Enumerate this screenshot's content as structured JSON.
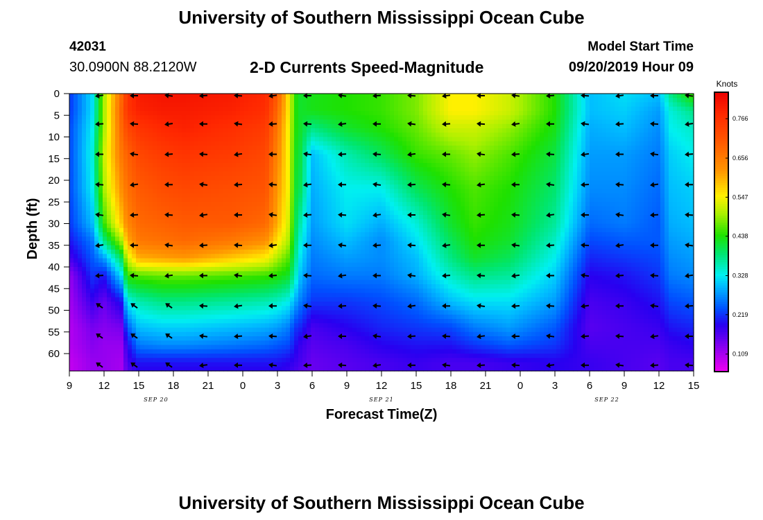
{
  "header": {
    "title": "University of Southern Mississippi Ocean Cube",
    "station_id": "42031",
    "station_location": "30.0900N 88.2120W",
    "subtitle": "2-D Currents Speed-Magnitude",
    "model_start_label": "Model Start Time",
    "model_start_time": "09/20/2019 Hour 09"
  },
  "footer": {
    "title": "University of Southern Mississippi Ocean Cube"
  },
  "chart_data": {
    "type": "heatmap",
    "title": "2-D Currents Speed-Magnitude",
    "xlabel": "Forecast Time(Z)",
    "ylabel": "Depth (ft)",
    "x_tick_labels": [
      "9",
      "12",
      "15",
      "18",
      "21",
      "0",
      "3",
      "6",
      "9",
      "12",
      "15",
      "18",
      "21",
      "0",
      "3",
      "6",
      "9",
      "12",
      "15"
    ],
    "x_hours": [
      0,
      3,
      6,
      9,
      12,
      15,
      18,
      21,
      24,
      27,
      30,
      33,
      36,
      39,
      42,
      45,
      48,
      51,
      54
    ],
    "date_labels": [
      {
        "label": "SEP 20",
        "hour": 7.5
      },
      {
        "label": "SEP 21",
        "hour": 27
      },
      {
        "label": "SEP 22",
        "hour": 46.5
      }
    ],
    "y_ticks": [
      0,
      5,
      10,
      15,
      20,
      25,
      30,
      35,
      40,
      45,
      50,
      55,
      60
    ],
    "ylim": [
      0,
      64
    ],
    "colorbar": {
      "unit": "Knots",
      "ticks": [
        0.766,
        0.656,
        0.547,
        0.438,
        0.328,
        0.219,
        0.109
      ],
      "range": [
        0.06,
        0.84
      ]
    },
    "grid_times": [
      0,
      2,
      3,
      4.5,
      5,
      6,
      8,
      10,
      14,
      17,
      18,
      19,
      19.5,
      20,
      21,
      24,
      27,
      30,
      33,
      35,
      38,
      42,
      45,
      48,
      51,
      52,
      54
    ],
    "grid_depths": [
      0,
      4,
      8,
      14,
      22,
      30,
      34,
      38,
      42,
      48,
      54,
      58,
      62,
      64
    ],
    "speed_knots": [
      [
        0.22,
        0.22,
        0.23,
        0.23,
        0.23,
        0.22,
        0.2,
        0.17,
        0.12,
        0.11,
        0.1,
        0.1,
        0.09,
        0.09
      ],
      [
        0.32,
        0.32,
        0.33,
        0.34,
        0.33,
        0.3,
        0.26,
        0.24,
        0.22,
        0.18,
        0.14,
        0.13,
        0.12,
        0.12
      ],
      [
        0.5,
        0.5,
        0.5,
        0.52,
        0.5,
        0.45,
        0.38,
        0.28,
        0.2,
        0.15,
        0.13,
        0.12,
        0.12,
        0.12
      ],
      [
        0.68,
        0.69,
        0.68,
        0.66,
        0.63,
        0.58,
        0.5,
        0.4,
        0.32,
        0.2,
        0.14,
        0.12,
        0.11,
        0.11
      ],
      [
        0.76,
        0.76,
        0.73,
        0.69,
        0.67,
        0.64,
        0.6,
        0.52,
        0.45,
        0.33,
        0.24,
        0.19,
        0.17,
        0.16
      ],
      [
        0.8,
        0.79,
        0.76,
        0.73,
        0.7,
        0.68,
        0.66,
        0.6,
        0.46,
        0.36,
        0.3,
        0.26,
        0.2,
        0.19
      ],
      [
        0.81,
        0.8,
        0.78,
        0.75,
        0.72,
        0.69,
        0.67,
        0.61,
        0.47,
        0.38,
        0.31,
        0.27,
        0.2,
        0.19
      ],
      [
        0.81,
        0.8,
        0.79,
        0.76,
        0.73,
        0.7,
        0.68,
        0.62,
        0.47,
        0.38,
        0.31,
        0.27,
        0.2,
        0.19
      ],
      [
        0.8,
        0.79,
        0.77,
        0.75,
        0.72,
        0.7,
        0.66,
        0.58,
        0.46,
        0.37,
        0.3,
        0.26,
        0.2,
        0.19
      ],
      [
        0.78,
        0.77,
        0.75,
        0.73,
        0.71,
        0.68,
        0.63,
        0.55,
        0.45,
        0.36,
        0.29,
        0.25,
        0.2,
        0.19
      ],
      [
        0.7,
        0.68,
        0.66,
        0.64,
        0.62,
        0.6,
        0.56,
        0.5,
        0.44,
        0.35,
        0.28,
        0.24,
        0.2,
        0.19
      ],
      [
        0.55,
        0.55,
        0.54,
        0.54,
        0.54,
        0.52,
        0.5,
        0.46,
        0.42,
        0.33,
        0.26,
        0.23,
        0.19,
        0.18
      ],
      [
        0.44,
        0.44,
        0.44,
        0.43,
        0.42,
        0.41,
        0.4,
        0.38,
        0.36,
        0.29,
        0.22,
        0.2,
        0.18,
        0.17
      ],
      [
        0.42,
        0.42,
        0.42,
        0.41,
        0.4,
        0.36,
        0.34,
        0.32,
        0.3,
        0.26,
        0.21,
        0.18,
        0.17,
        0.16
      ],
      [
        0.43,
        0.43,
        0.38,
        0.3,
        0.29,
        0.28,
        0.27,
        0.26,
        0.25,
        0.22,
        0.17,
        0.16,
        0.15,
        0.15
      ],
      [
        0.44,
        0.44,
        0.42,
        0.36,
        0.33,
        0.32,
        0.3,
        0.28,
        0.26,
        0.22,
        0.19,
        0.17,
        0.16,
        0.16
      ],
      [
        0.45,
        0.45,
        0.44,
        0.4,
        0.33,
        0.29,
        0.27,
        0.27,
        0.26,
        0.23,
        0.21,
        0.19,
        0.17,
        0.17
      ],
      [
        0.48,
        0.48,
        0.47,
        0.45,
        0.4,
        0.34,
        0.32,
        0.3,
        0.29,
        0.25,
        0.22,
        0.2,
        0.18,
        0.18
      ],
      [
        0.55,
        0.55,
        0.52,
        0.47,
        0.44,
        0.42,
        0.4,
        0.38,
        0.35,
        0.3,
        0.23,
        0.2,
        0.17,
        0.17
      ],
      [
        0.55,
        0.55,
        0.52,
        0.49,
        0.46,
        0.45,
        0.44,
        0.42,
        0.38,
        0.32,
        0.26,
        0.22,
        0.17,
        0.17
      ],
      [
        0.52,
        0.52,
        0.49,
        0.46,
        0.44,
        0.43,
        0.42,
        0.4,
        0.37,
        0.32,
        0.28,
        0.24,
        0.18,
        0.18
      ],
      [
        0.44,
        0.44,
        0.43,
        0.41,
        0.39,
        0.37,
        0.35,
        0.33,
        0.31,
        0.28,
        0.24,
        0.22,
        0.19,
        0.19
      ],
      [
        0.3,
        0.3,
        0.29,
        0.28,
        0.27,
        0.25,
        0.23,
        0.21,
        0.19,
        0.17,
        0.16,
        0.17,
        0.18,
        0.18
      ],
      [
        0.32,
        0.31,
        0.3,
        0.28,
        0.27,
        0.26,
        0.24,
        0.22,
        0.2,
        0.18,
        0.17,
        0.17,
        0.17,
        0.17
      ],
      [
        0.3,
        0.28,
        0.27,
        0.26,
        0.25,
        0.24,
        0.24,
        0.23,
        0.22,
        0.2,
        0.18,
        0.17,
        0.16,
        0.16
      ],
      [
        0.38,
        0.34,
        0.33,
        0.31,
        0.3,
        0.29,
        0.28,
        0.27,
        0.26,
        0.23,
        0.2,
        0.18,
        0.17,
        0.17
      ],
      [
        0.46,
        0.38,
        0.35,
        0.33,
        0.31,
        0.3,
        0.29,
        0.28,
        0.27,
        0.24,
        0.21,
        0.19,
        0.17,
        0.17
      ]
    ],
    "arrow_times": [
      3,
      6,
      9,
      12,
      15,
      18,
      21,
      24,
      27,
      30,
      33,
      36,
      39,
      42,
      45,
      48,
      51,
      54
    ],
    "arrow_depths": [
      0,
      7,
      14,
      21,
      28,
      35,
      42,
      49,
      56,
      63
    ],
    "arrow_direction": "westward"
  }
}
